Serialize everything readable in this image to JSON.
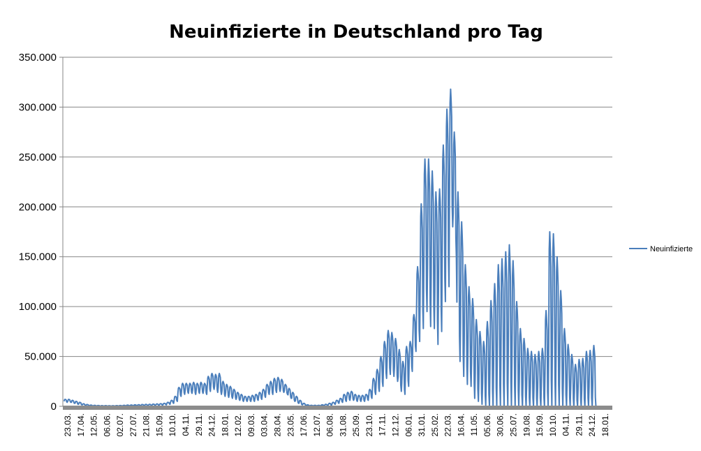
{
  "chart_data": {
    "type": "line",
    "title": "Neuinfizierte in Deutschland pro Tag",
    "xlabel": "",
    "ylabel": "",
    "ylim": [
      0,
      350000
    ],
    "y_ticks": [
      0,
      50000,
      100000,
      150000,
      200000,
      250000,
      300000,
      350000
    ],
    "y_tick_labels": [
      "0",
      "50.000",
      "100.000",
      "150.000",
      "200.000",
      "250.000",
      "300.000",
      "350.000"
    ],
    "x_tick_labels": [
      "23.03.",
      "17.04.",
      "12.05.",
      "06.06.",
      "02.07.",
      "27.07.",
      "21.08.",
      "15.09.",
      "10.10.",
      "04.11.",
      "29.11.",
      "24.12.",
      "18.01.",
      "12.02.",
      "09.03.",
      "03.04.",
      "28.04.",
      "23.05.",
      "17.06.",
      "12.07.",
      "06.08.",
      "31.08.",
      "25.09.",
      "23.10.",
      "17.11.",
      "12.12.",
      "06.01.",
      "31.01.",
      "25.02.",
      "22.03.",
      "16.04.",
      "11.05.",
      "05.06.",
      "30.06.",
      "25.07.",
      "19.08.",
      "15.09.",
      "10.10.",
      "04.11.",
      "29.11.",
      "24.12.",
      "18.01."
    ],
    "x_tick_first_date": "2020-03-23",
    "x_tick_interval_days": 25,
    "grid": true,
    "legend_placement": "right",
    "colors": {
      "series": "#4a7ebb",
      "grid": "#868686",
      "baseline": "#8c8c8c"
    },
    "series": [
      {
        "name": "Neuinfizierte",
        "week_start": "2020-03-16",
        "weekly_peak_thousands": [
          7,
          7,
          6,
          5,
          4,
          2.5,
          1.8,
          1.2,
          1,
          0.8,
          0.7,
          0.7,
          0.6,
          0.6,
          0.7,
          0.8,
          1,
          1.2,
          1.3,
          1.5,
          1.6,
          1.8,
          1.9,
          2,
          2.2,
          2.4,
          2.6,
          3,
          4,
          6,
          10,
          19,
          23,
          23,
          23,
          24,
          23,
          24,
          23,
          30,
          33,
          32,
          33,
          25,
          22,
          20,
          17,
          14,
          12,
          10,
          10,
          11,
          12,
          14,
          17,
          22,
          25,
          28,
          29,
          27,
          22,
          18,
          14,
          10,
          6,
          3,
          1.5,
          1,
          1,
          1,
          1.5,
          2,
          3,
          4,
          6,
          8,
          12,
          14,
          15,
          12,
          11,
          11,
          12,
          17,
          28,
          37,
          50,
          65,
          76,
          74,
          68,
          57,
          45,
          60,
          65,
          92,
          140,
          203,
          248,
          248,
          236,
          215,
          218,
          262,
          298,
          318,
          275,
          215,
          185,
          142,
          120,
          108,
          87,
          75,
          65,
          85,
          106,
          123,
          142,
          148,
          155,
          162,
          146,
          105,
          78,
          68,
          58,
          55,
          52,
          55,
          58,
          96,
          175,
          173,
          150,
          116,
          78,
          62,
          52,
          42,
          47,
          48,
          55,
          56,
          61
        ],
        "weekly_low_thousands": [
          4,
          4,
          3,
          2,
          1.5,
          1,
          0.6,
          0.4,
          0.3,
          0.3,
          0.2,
          0.2,
          0.2,
          0.2,
          0.3,
          0.3,
          0.4,
          0.5,
          0.5,
          0.6,
          0.6,
          0.7,
          0.8,
          0.8,
          0.9,
          1,
          1.2,
          1.5,
          2,
          3,
          5,
          10,
          12,
          13,
          13,
          12,
          13,
          13,
          12,
          15,
          17,
          14,
          12,
          10,
          9,
          8,
          7,
          6,
          5,
          5,
          5,
          5,
          6,
          7,
          9,
          12,
          12,
          14,
          15,
          14,
          12,
          8,
          5,
          3,
          1.5,
          1,
          0.5,
          0.4,
          0.4,
          0.4,
          0.5,
          0.8,
          1,
          2,
          3,
          4,
          5,
          6,
          6,
          5,
          5,
          5,
          6,
          8,
          12,
          15,
          20,
          28,
          32,
          30,
          25,
          15,
          12,
          20,
          35,
          55,
          65,
          78,
          95,
          80,
          78,
          62,
          75,
          105,
          120,
          180,
          150,
          45,
          30,
          22,
          20,
          8,
          5,
          2,
          1,
          0,
          0,
          0,
          0,
          0,
          0,
          0,
          0,
          0,
          0,
          0,
          0,
          0,
          0,
          0,
          0,
          0,
          0,
          0,
          0,
          0,
          0,
          0,
          0,
          0,
          0,
          0,
          0,
          0,
          0
        ]
      }
    ]
  }
}
